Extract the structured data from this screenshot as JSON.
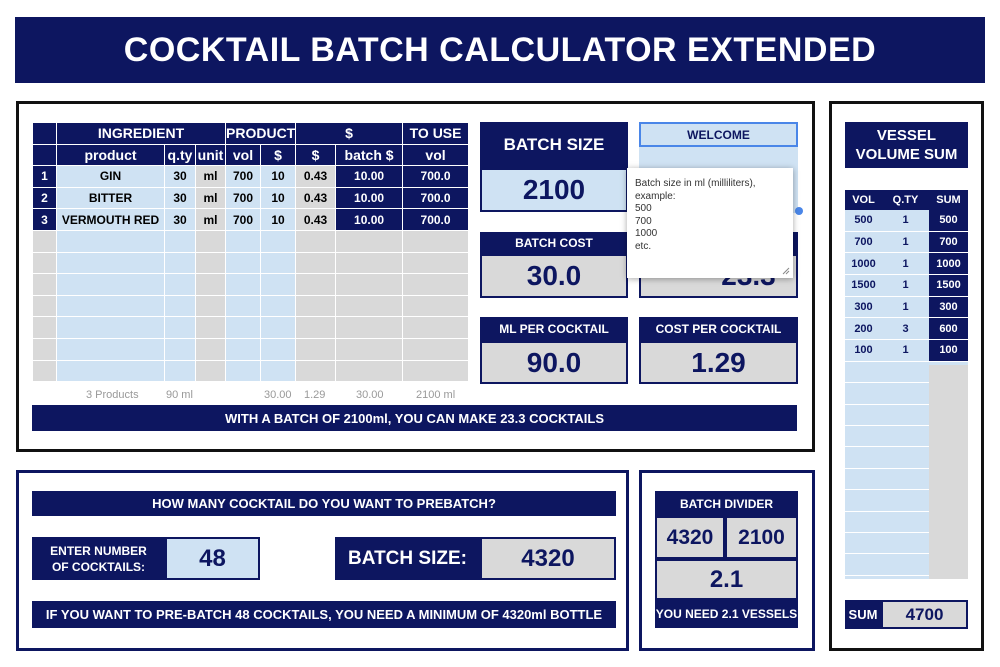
{
  "title": "COCKTAIL BATCH CALCULATOR EXTENDED",
  "table": {
    "group_headers": [
      "INGREDIENT",
      "PRODUCT",
      "$",
      "TO USE"
    ],
    "sub_headers": [
      "product",
      "q.ty",
      "unit",
      "vol",
      "$",
      "$",
      "batch $",
      "vol"
    ],
    "rows": [
      {
        "num": "1",
        "product": "GIN",
        "qty": "30",
        "unit": "ml",
        "vol": "700",
        "price": "10",
        "cost": "0.43",
        "batch": "10.00",
        "use": "700.0"
      },
      {
        "num": "2",
        "product": "BITTER",
        "qty": "30",
        "unit": "ml",
        "vol": "700",
        "price": "10",
        "cost": "0.43",
        "batch": "10.00",
        "use": "700.0"
      },
      {
        "num": "3",
        "product": "VERMOUTH RED",
        "qty": "30",
        "unit": "ml",
        "vol": "700",
        "price": "10",
        "cost": "0.43",
        "batch": "10.00",
        "use": "700.0"
      }
    ],
    "totals": {
      "products": "3 Products",
      "ml": "90 ml",
      "price": "30.00",
      "cost": "1.29",
      "batch": "30.00",
      "use": "2100 ml"
    },
    "summary": "WITH A BATCH OF 2100ml, YOU CAN MAKE 23.3 COCKTAILS"
  },
  "batch_size": {
    "label": "BATCH SIZE",
    "value": "2100"
  },
  "welcome": {
    "label": "WELCOME"
  },
  "batch_cost": {
    "label": "BATCH COST",
    "value": "30.0"
  },
  "hidden_box": {
    "value": "23.3"
  },
  "ml_per_cocktail": {
    "label": "ML PER COCKTAIL",
    "value": "90.0"
  },
  "cost_per_cocktail": {
    "label": "COST PER COCKTAIL",
    "value": "1.29"
  },
  "tooltip": {
    "lines": [
      "Batch size in ml (milliliters),",
      "example:",
      "500",
      "700",
      "1000",
      "etc."
    ]
  },
  "prebatch": {
    "question": "HOW MANY COCKTAIL DO YOU WANT TO PREBATCH?",
    "enter_label_1": "ENTER NUMBER",
    "enter_label_2": "OF COCKTAILS:",
    "cocktails": "48",
    "batch_label": "BATCH SIZE:",
    "batch_value": "4320",
    "result": "IF YOU WANT TO PRE-BATCH 48 COCKTAILS, YOU NEED A MINIMUM OF 4320ml BOTTLE"
  },
  "divider": {
    "label": "BATCH DIVIDER",
    "a": "4320",
    "b": "2100",
    "result": "2.1",
    "footer": "YOU NEED 2.1 VESSELS"
  },
  "vessel": {
    "title_1": "VESSEL",
    "title_2": "VOLUME SUM",
    "headers": [
      "VOL",
      "Q.TY",
      "SUM"
    ],
    "rows": [
      {
        "vol": "500",
        "qty": "1",
        "sum": "500"
      },
      {
        "vol": "700",
        "qty": "1",
        "sum": "700"
      },
      {
        "vol": "1000",
        "qty": "1",
        "sum": "1000"
      },
      {
        "vol": "1500",
        "qty": "1",
        "sum": "1500"
      },
      {
        "vol": "300",
        "qty": "1",
        "sum": "300"
      },
      {
        "vol": "200",
        "qty": "3",
        "sum": "600"
      },
      {
        "vol": "100",
        "qty": "1",
        "sum": "100"
      }
    ],
    "sum_label": "SUM",
    "sum_value": "4700"
  }
}
